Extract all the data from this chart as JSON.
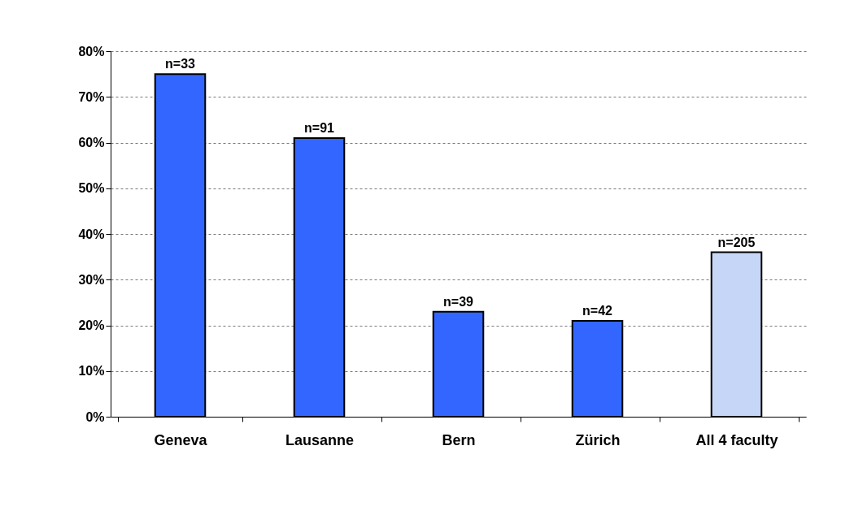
{
  "chart_data": {
    "type": "bar",
    "categories": [
      "Geneva",
      "Lausanne",
      "Bern",
      "Zürich",
      "All 4 faculty"
    ],
    "values": [
      75,
      61,
      23,
      21,
      36
    ],
    "colors": [
      "#3366ff",
      "#3366ff",
      "#3366ff",
      "#3366ff",
      "#c6d6f7"
    ],
    "ylim": [
      0,
      80
    ],
    "yticks": [
      {
        "value": 0,
        "label": "0%"
      },
      {
        "value": 10,
        "label": "10%"
      },
      {
        "value": 20,
        "label": "20%"
      },
      {
        "value": 30,
        "label": "30%"
      },
      {
        "value": 40,
        "label": "40%"
      },
      {
        "value": 50,
        "label": "50%"
      },
      {
        "value": 60,
        "label": "60%"
      },
      {
        "value": 70,
        "label": "70%"
      },
      {
        "value": 80,
        "label": "80%"
      }
    ],
    "grid": "y",
    "annotations": [
      {
        "text": "n=33",
        "x": "Geneva",
        "y": 75
      },
      {
        "text": "n=91",
        "x": "Lausanne",
        "y": 61
      },
      {
        "text": "n=39",
        "x": "Bern",
        "y": 23
      },
      {
        "text": "n=42",
        "x": "Zürich",
        "y": 21
      },
      {
        "text": "n=205",
        "x": "All 4 faculty",
        "y": 36
      }
    ]
  }
}
